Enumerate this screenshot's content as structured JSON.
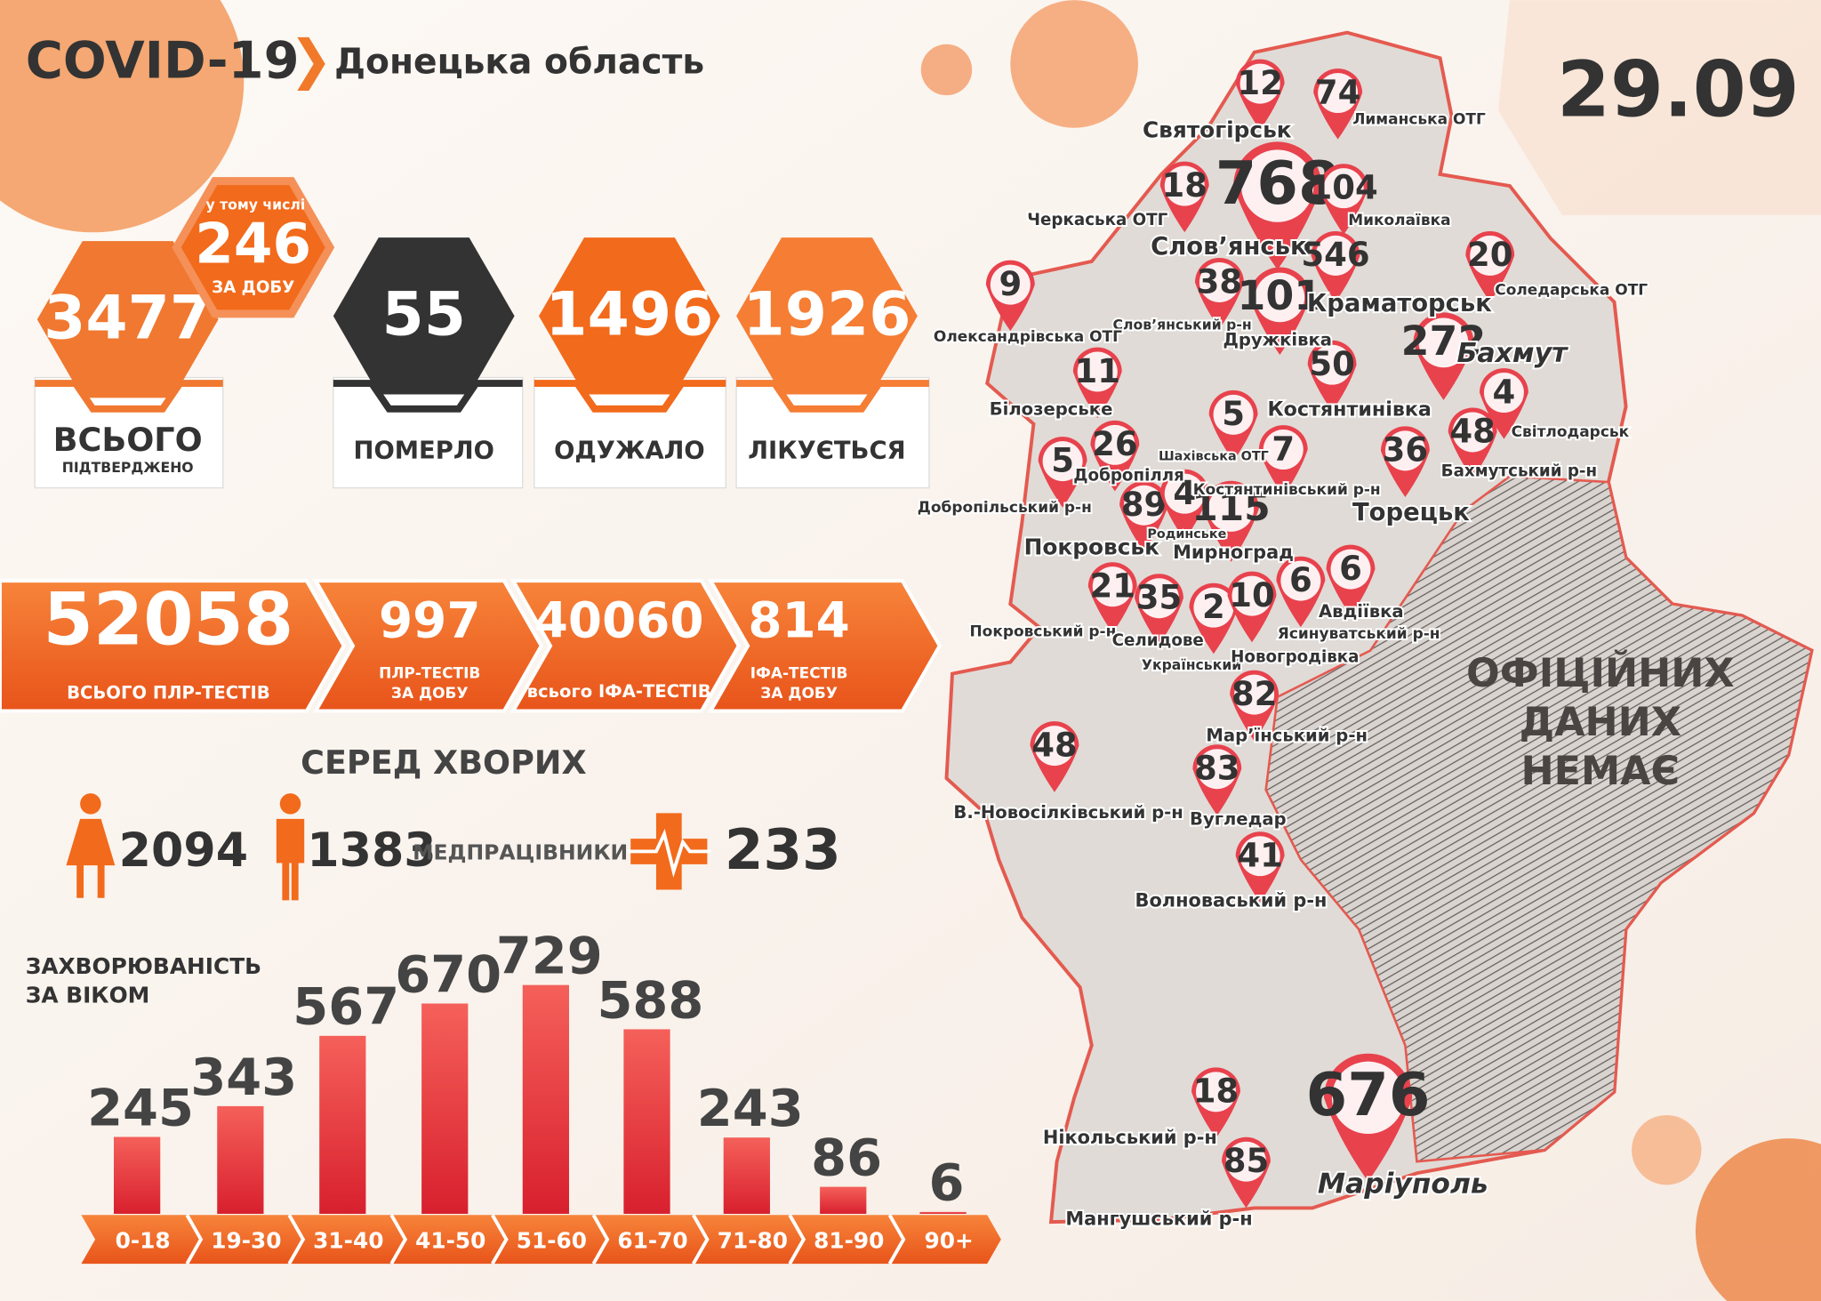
{
  "header": {
    "title": "COVID-19",
    "region": "Донецька область",
    "date": "29.09"
  },
  "summary": {
    "total": {
      "value": 3477,
      "label": "ВСЬОГО",
      "sublabel": "ПІДТВЕРДЖЕНО"
    },
    "daily": {
      "caption": "у тому числі",
      "value": 246,
      "label": "ЗА ДОБУ"
    },
    "deaths": {
      "value": 55,
      "label": "ПОМЕРЛО"
    },
    "recovered": {
      "value": 1496,
      "label": "ОДУЖАЛО"
    },
    "treated": {
      "value": 1926,
      "label": "ЛІКУЄТЬСЯ"
    }
  },
  "tests": [
    {
      "value": 52058,
      "label": [
        "ВСЬОГО ПЛР-ТЕСТІВ"
      ]
    },
    {
      "value": 997,
      "label": [
        "ПЛР-ТЕСТІВ",
        "ЗА ДОБУ"
      ]
    },
    {
      "value": 40060,
      "label": [
        "всього ІФА-ТЕСТІВ"
      ]
    },
    {
      "value": 814,
      "label": [
        "ІФА-ТЕСТІВ",
        "ЗА ДОБУ"
      ]
    }
  ],
  "patients": {
    "title": "СЕРЕД ХВОРИХ",
    "women": 2094,
    "men": 1383,
    "medics_label": "МЕДПРАЦІВНИКИ",
    "medics": 233
  },
  "chart_data": {
    "type": "bar",
    "title": [
      "ЗАХВОРЮВАНІСТЬ",
      "ЗА ВІКОМ"
    ],
    "categories": [
      "0-18",
      "19-30",
      "31-40",
      "41-50",
      "51-60",
      "61-70",
      "71-80",
      "81-90",
      "90+"
    ],
    "values": [
      245,
      343,
      567,
      670,
      729,
      588,
      243,
      86,
      6
    ],
    "color": "#e8323c"
  },
  "map": {
    "markers": [
      12,
      74,
      768,
      18,
      104,
      546,
      20,
      9,
      38,
      101,
      272,
      11,
      50,
      5,
      4,
      26,
      48,
      7,
      36,
      5,
      89,
      4,
      115,
      21,
      6,
      6,
      35,
      2,
      10,
      82,
      48,
      83,
      41,
      18,
      676,
      85
    ],
    "places": [
      "Святогірськ",
      "Лиманська ОТГ",
      "Черкаська ОТГ",
      "Миколаївка",
      "Слов’янськ",
      "Соледарська ОТГ",
      "Слов’янський р-н",
      "Краматорськ",
      "Олександрівська ОТГ",
      "Дружківка",
      "Бахмут",
      "Білозерське",
      "Костянтинівка",
      "Світлодарськ",
      "Шахівська ОТГ",
      "Добропілля",
      "Бахмутський р-н",
      "Костянтинівський р-н",
      "Добропільський р-н",
      "Торецьк",
      "Родинське",
      "Покровськ",
      "Мирноград",
      "Авдіївка",
      "Покровський р-н",
      "Ясинуватський р-н",
      "Селидове",
      "Український",
      "Новогродівка",
      "Мар’їнський р-н",
      "В.-Новосілківський р-н",
      "Вугледар",
      "Волноваський р-н",
      "Нікольський р-н",
      "Маріуполь",
      "Мангушський р-н"
    ],
    "no_data": [
      "ОФІЦІЙНИХ",
      "ДАНИХ",
      "НЕМАЄ"
    ]
  }
}
